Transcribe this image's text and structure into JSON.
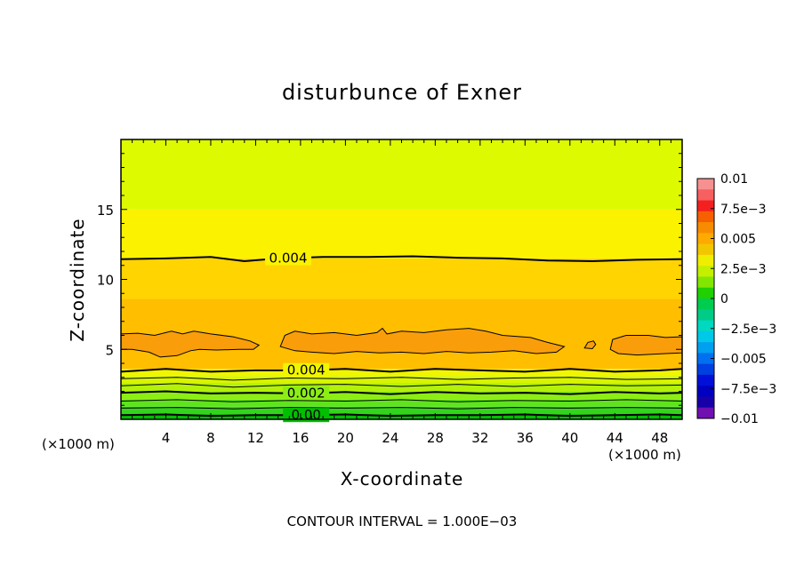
{
  "chart_data": {
    "type": "heatmap",
    "title": "disturbunce of Exner",
    "xlabel": "X-coordinate",
    "ylabel": "Z-coordinate",
    "x_unit_left": "(×1000 m)",
    "x_unit_right": "(×1000 m)",
    "xlim": [
      0,
      50
    ],
    "ylim": [
      0,
      20
    ],
    "x_ticks": [
      {
        "value": 4,
        "label": "4"
      },
      {
        "value": 8,
        "label": "8"
      },
      {
        "value": 12,
        "label": "12"
      },
      {
        "value": 16,
        "label": "16"
      },
      {
        "value": 20,
        "label": "20"
      },
      {
        "value": 24,
        "label": "24"
      },
      {
        "value": 28,
        "label": "28"
      },
      {
        "value": 32,
        "label": "32"
      },
      {
        "value": 36,
        "label": "36"
      },
      {
        "value": 40,
        "label": "40"
      },
      {
        "value": 44,
        "label": "44"
      },
      {
        "value": 48,
        "label": "48"
      }
    ],
    "y_ticks": [
      {
        "value": 5,
        "label": "5"
      },
      {
        "value": 10,
        "label": "10"
      },
      {
        "value": 15,
        "label": "15"
      }
    ],
    "bands": [
      {
        "z_bottom": 0.0,
        "z_top": 0.35,
        "color": "#00c000"
      },
      {
        "z_bottom": 0.35,
        "z_top": 0.9,
        "color": "#33d41c"
      },
      {
        "z_bottom": 0.9,
        "z_top": 1.4,
        "color": "#5ee41c"
      },
      {
        "z_bottom": 1.4,
        "z_top": 2.0,
        "color": "#8cee14"
      },
      {
        "z_bottom": 2.0,
        "z_top": 2.6,
        "color": "#b4f20a"
      },
      {
        "z_bottom": 2.6,
        "z_top": 3.1,
        "color": "#d8f500"
      },
      {
        "z_bottom": 3.1,
        "z_top": 3.6,
        "color": "#f0f500"
      },
      {
        "z_bottom": 3.6,
        "z_top": 8.6,
        "color": "#ffbe00"
      },
      {
        "z_bottom": 8.6,
        "z_top": 11.5,
        "color": "#ffd400"
      },
      {
        "z_bottom": 11.5,
        "z_top": 15.0,
        "color": "#fbf200"
      },
      {
        "z_bottom": 15.0,
        "z_top": 20.0,
        "color": "#ddfa00"
      }
    ],
    "contours": [
      {
        "label": "0.004",
        "label_x": 14.9,
        "points": [
          [
            0,
            11.45
          ],
          [
            4,
            11.5
          ],
          [
            8,
            11.6
          ],
          [
            11,
            11.3
          ],
          [
            14,
            11.5
          ],
          [
            18,
            11.6
          ],
          [
            22,
            11.6
          ],
          [
            26,
            11.65
          ],
          [
            30,
            11.55
          ],
          [
            34,
            11.5
          ],
          [
            38,
            11.35
          ],
          [
            42,
            11.3
          ],
          [
            46,
            11.4
          ],
          [
            50,
            11.45
          ]
        ]
      },
      {
        "label": "0.004",
        "label_x": 16.5,
        "points": [
          [
            0,
            3.4
          ],
          [
            4,
            3.6
          ],
          [
            8,
            3.4
          ],
          [
            12,
            3.5
          ],
          [
            16,
            3.5
          ],
          [
            20,
            3.6
          ],
          [
            24,
            3.4
          ],
          [
            28,
            3.6
          ],
          [
            32,
            3.5
          ],
          [
            36,
            3.4
          ],
          [
            40,
            3.6
          ],
          [
            44,
            3.4
          ],
          [
            48,
            3.5
          ],
          [
            50,
            3.6
          ]
        ]
      },
      {
        "label": "",
        "label_x": 0,
        "points": [
          [
            0,
            2.9
          ],
          [
            5,
            3.0
          ],
          [
            10,
            2.8
          ],
          [
            15,
            2.95
          ],
          [
            20,
            2.9
          ],
          [
            25,
            3.0
          ],
          [
            30,
            2.85
          ],
          [
            35,
            2.95
          ],
          [
            40,
            3.0
          ],
          [
            45,
            2.85
          ],
          [
            50,
            2.9
          ]
        ]
      },
      {
        "label": "",
        "label_x": 0,
        "points": [
          [
            0,
            2.4
          ],
          [
            5,
            2.55
          ],
          [
            10,
            2.3
          ],
          [
            15,
            2.45
          ],
          [
            20,
            2.5
          ],
          [
            25,
            2.35
          ],
          [
            30,
            2.5
          ],
          [
            35,
            2.35
          ],
          [
            40,
            2.5
          ],
          [
            45,
            2.4
          ],
          [
            50,
            2.45
          ]
        ]
      },
      {
        "label": "0.002",
        "label_x": 16.5,
        "points": [
          [
            0,
            1.9
          ],
          [
            4,
            2.0
          ],
          [
            8,
            1.85
          ],
          [
            12,
            1.9
          ],
          [
            16,
            1.85
          ],
          [
            20,
            1.95
          ],
          [
            24,
            1.8
          ],
          [
            28,
            1.95
          ],
          [
            32,
            1.85
          ],
          [
            36,
            1.9
          ],
          [
            40,
            1.8
          ],
          [
            44,
            1.95
          ],
          [
            48,
            1.85
          ],
          [
            50,
            1.9
          ]
        ]
      },
      {
        "label": "",
        "label_x": 0,
        "points": [
          [
            0,
            1.3
          ],
          [
            5,
            1.4
          ],
          [
            10,
            1.25
          ],
          [
            15,
            1.35
          ],
          [
            20,
            1.3
          ],
          [
            25,
            1.4
          ],
          [
            30,
            1.25
          ],
          [
            35,
            1.35
          ],
          [
            40,
            1.3
          ],
          [
            45,
            1.4
          ],
          [
            50,
            1.3
          ]
        ]
      },
      {
        "label": "",
        "label_x": 0,
        "points": [
          [
            0,
            0.8
          ],
          [
            5,
            0.85
          ],
          [
            10,
            0.75
          ],
          [
            15,
            0.85
          ],
          [
            20,
            0.8
          ],
          [
            25,
            0.85
          ],
          [
            30,
            0.75
          ],
          [
            35,
            0.85
          ],
          [
            40,
            0.8
          ],
          [
            45,
            0.85
          ],
          [
            50,
            0.8
          ]
        ]
      },
      {
        "label": "0.00",
        "label_x": 16.5,
        "points": [
          [
            0,
            0.3
          ],
          [
            4,
            0.35
          ],
          [
            8,
            0.25
          ],
          [
            12,
            0.3
          ],
          [
            16,
            0.3
          ],
          [
            20,
            0.35
          ],
          [
            24,
            0.25
          ],
          [
            28,
            0.3
          ],
          [
            32,
            0.3
          ],
          [
            36,
            0.35
          ],
          [
            40,
            0.25
          ],
          [
            44,
            0.3
          ],
          [
            48,
            0.35
          ],
          [
            50,
            0.3
          ]
        ]
      }
    ],
    "blobs": [
      {
        "color": "#f99e0a",
        "points": [
          [
            0,
            5.0
          ],
          [
            0,
            6.1
          ],
          [
            1.5,
            6.15
          ],
          [
            3,
            6.0
          ],
          [
            4.5,
            6.3
          ],
          [
            5.5,
            6.1
          ],
          [
            6.5,
            6.3
          ],
          [
            8,
            6.1
          ],
          [
            10,
            5.9
          ],
          [
            11.5,
            5.6
          ],
          [
            12.3,
            5.3
          ],
          [
            11.8,
            5.0
          ],
          [
            10.5,
            5.0
          ],
          [
            8.5,
            4.95
          ],
          [
            7,
            5.0
          ],
          [
            6.2,
            4.9
          ],
          [
            5,
            4.55
          ],
          [
            3.5,
            4.45
          ],
          [
            2.5,
            4.8
          ],
          [
            1,
            5.0
          ]
        ]
      },
      {
        "color": "#f99e0a",
        "points": [
          [
            14.2,
            5.2
          ],
          [
            14.6,
            6.0
          ],
          [
            15.5,
            6.3
          ],
          [
            17,
            6.1
          ],
          [
            19,
            6.2
          ],
          [
            21,
            6.0
          ],
          [
            22.8,
            6.2
          ],
          [
            23.3,
            6.5
          ],
          [
            23.7,
            6.1
          ],
          [
            25,
            6.3
          ],
          [
            27,
            6.2
          ],
          [
            29,
            6.4
          ],
          [
            31,
            6.5
          ],
          [
            32.5,
            6.3
          ],
          [
            34,
            6.0
          ],
          [
            36.5,
            5.85
          ],
          [
            38,
            5.5
          ],
          [
            39.5,
            5.2
          ],
          [
            38.8,
            4.8
          ],
          [
            37,
            4.7
          ],
          [
            35,
            4.9
          ],
          [
            33,
            4.8
          ],
          [
            31,
            4.75
          ],
          [
            29,
            4.85
          ],
          [
            27,
            4.7
          ],
          [
            25,
            4.8
          ],
          [
            23,
            4.75
          ],
          [
            21,
            4.85
          ],
          [
            19,
            4.7
          ],
          [
            17,
            4.8
          ],
          [
            15.5,
            4.9
          ]
        ]
      },
      {
        "color": "#f99e0a",
        "points": [
          [
            41.3,
            5.1
          ],
          [
            41.6,
            5.5
          ],
          [
            42.1,
            5.6
          ],
          [
            42.3,
            5.35
          ],
          [
            42.0,
            5.05
          ]
        ]
      },
      {
        "color": "#f99e0a",
        "points": [
          [
            43.6,
            5.0
          ],
          [
            43.8,
            5.7
          ],
          [
            45,
            6.0
          ],
          [
            47,
            6.0
          ],
          [
            48.5,
            5.85
          ],
          [
            50,
            5.9
          ],
          [
            50,
            4.75
          ],
          [
            48.5,
            4.7
          ],
          [
            46,
            4.6
          ],
          [
            44.3,
            4.7
          ]
        ]
      }
    ],
    "colorbar": {
      "ticks": [
        {
          "value": 0.01,
          "label": "0.01"
        },
        {
          "value": 0.0075,
          "label": "7.5e−3"
        },
        {
          "value": 0.005,
          "label": "0.005"
        },
        {
          "value": 0.0025,
          "label": "2.5e−3"
        },
        {
          "value": 0,
          "label": "0"
        },
        {
          "value": -0.0025,
          "label": "−2.5e−3"
        },
        {
          "value": -0.005,
          "label": "−0.005"
        },
        {
          "value": -0.0075,
          "label": "−7.5e−3"
        },
        {
          "value": -0.01,
          "label": "−0.01"
        }
      ],
      "colors_top_to_bottom": [
        "#f79090",
        "#f66060",
        "#f42020",
        "#f66000",
        "#f88c00",
        "#ffaa00",
        "#f2c600",
        "#f0ee00",
        "#c4f000",
        "#82e600",
        "#20d000",
        "#00cc50",
        "#00cc88",
        "#00d8c0",
        "#00c8e8",
        "#00a0f0",
        "#0070f0",
        "#0040e0",
        "#0010d8",
        "#0000c0",
        "#1800a8",
        "#7010b0"
      ]
    }
  },
  "footer": {
    "contour_interval": "CONTOUR INTERVAL = 1.000E−03"
  }
}
